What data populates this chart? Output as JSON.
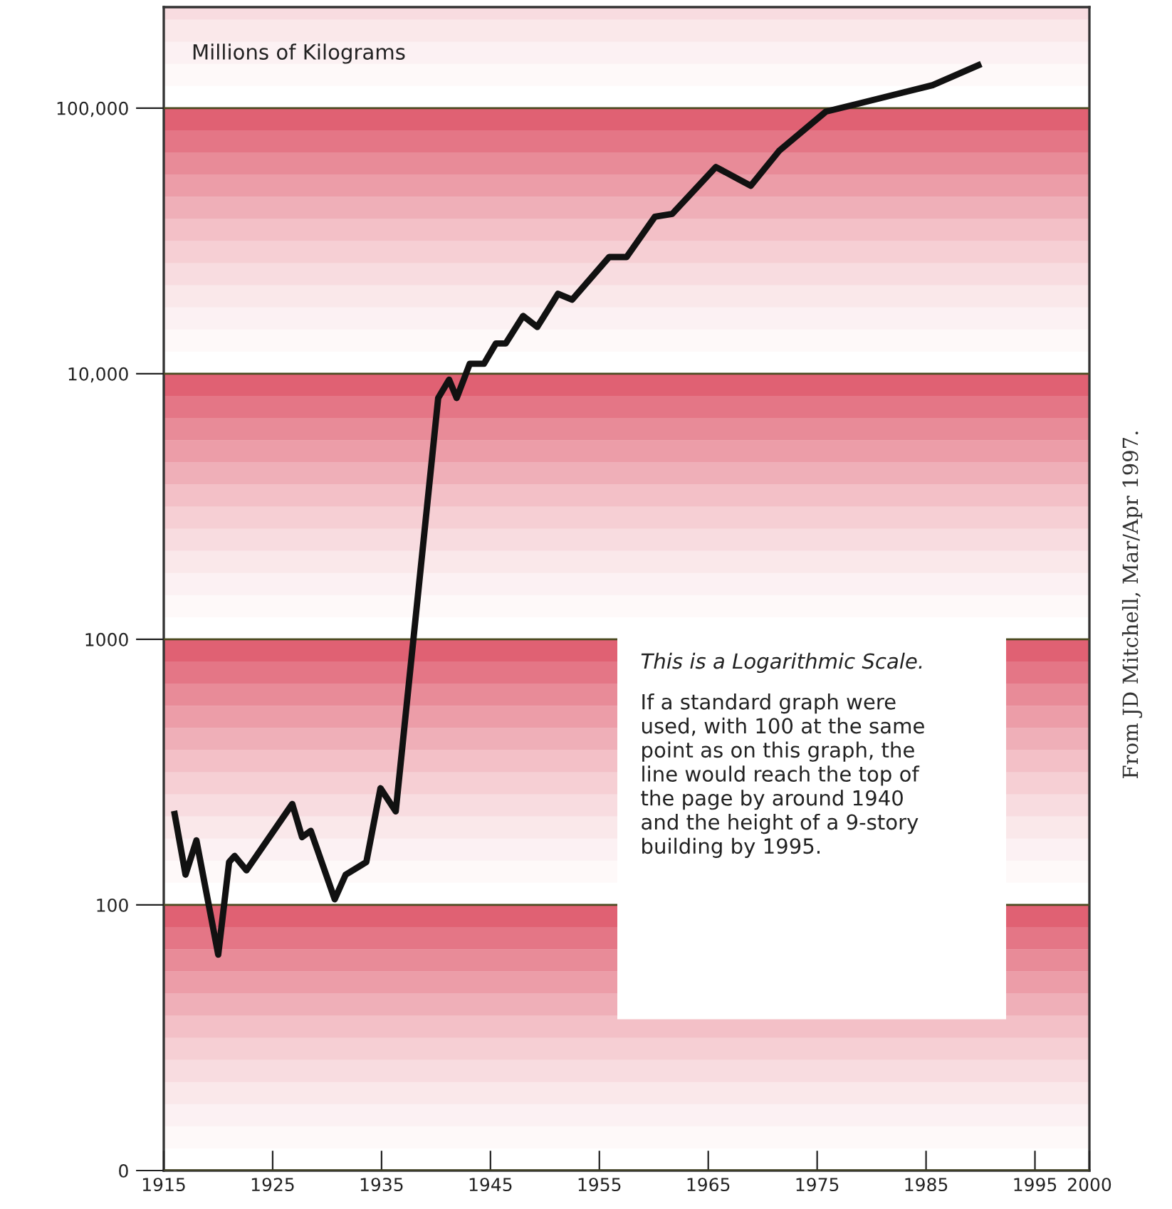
{
  "chart_data": {
    "type": "line",
    "ylabel": "Millions of Kilograms",
    "x": [
      1916,
      1917,
      1918,
      1920,
      1921,
      1921.5,
      1922.6,
      1926.8,
      1927.7,
      1928.5,
      1930.7,
      1931.7,
      1933.6,
      1934.9,
      1936.3,
      1940.2,
      1941.2,
      1941.9,
      1943.1,
      1944.4,
      1945.5,
      1946.4,
      1948,
      1949.3,
      1951.2,
      1952.5,
      1955.9,
      1957.5,
      1960.1,
      1961.7,
      1965.7,
      1968.9,
      1971.5,
      1975.8,
      1978.8,
      1985.6,
      1989.8
    ],
    "series": [
      {
        "color": "#111111",
        "values": [
          220,
          130,
          175,
          65,
          145,
          153,
          135,
          240,
          180,
          190,
          105,
          130,
          145,
          275,
          225,
          8100,
          9500,
          8100,
          10900,
          10900,
          13000,
          13000,
          16500,
          15000,
          20000,
          19000,
          27500,
          27500,
          39000,
          40000,
          60000,
          51000,
          69000,
          97000,
          104000,
          122000,
          145000
        ]
      }
    ],
    "log": true,
    "xlim": [
      1915,
      2000
    ],
    "ylim": [
      0,
      240000
    ],
    "xticks": [
      1915,
      1925,
      1935,
      1945,
      1955,
      1965,
      1975,
      1985,
      1995,
      2000
    ],
    "yticks": [
      0,
      {
        "value": 100,
        "label": "100"
      },
      {
        "value": 1000,
        "label": "1000"
      },
      {
        "value": 10000,
        "label": "10,000"
      },
      {
        "value": 100000,
        "label": "100,000"
      }
    ],
    "grid": "y",
    "marker": "none",
    "line_style": "solid",
    "annotations": [
      "This is a Logarithmic Scale.",
      "If a standard graph were\nused, with 100 at the same\npoint as on this graph, the\nline would reach the top of\nthe page by around 1940\nand the height of a 9-story\nbuilding by 1995.",
      "From JD Mitchell, Mar/Apr 1997."
    ]
  }
}
